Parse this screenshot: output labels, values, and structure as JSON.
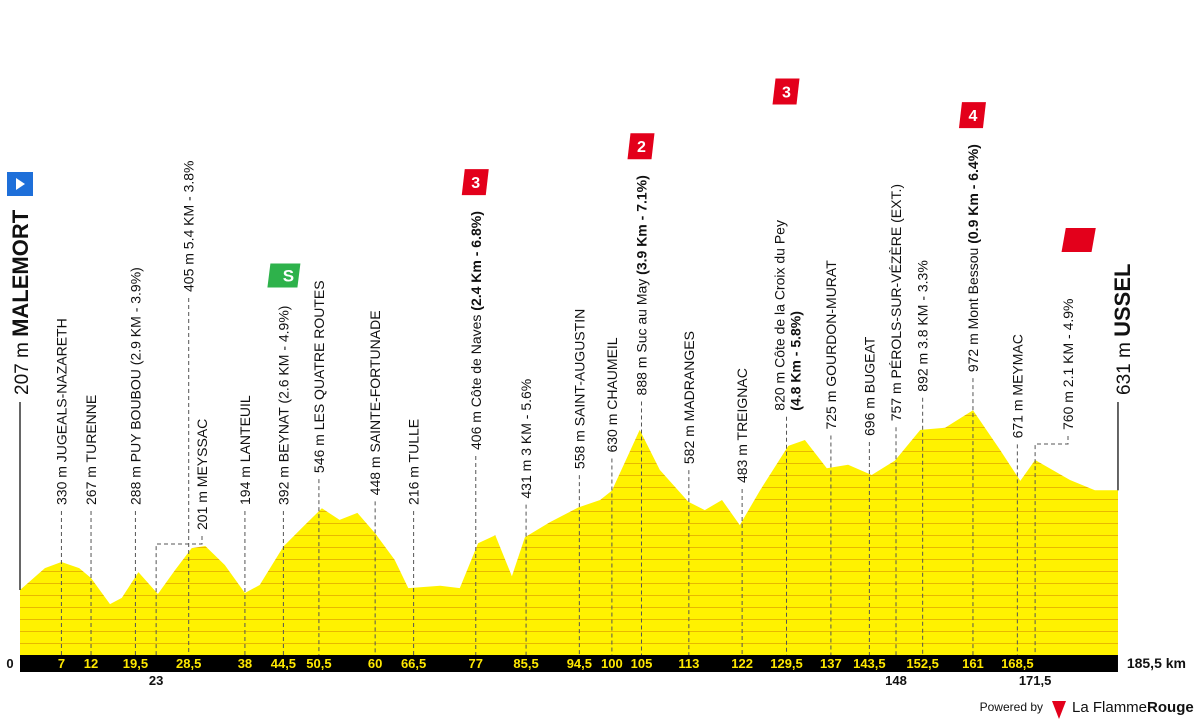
{
  "chart_data": {
    "type": "area",
    "color": "#fff200",
    "x": [
      0,
      4.2,
      7,
      10,
      12,
      15.2,
      17.2,
      20,
      23.3,
      26.2,
      29,
      31.3,
      34.6,
      38,
      40.5,
      44.5,
      48.1,
      51,
      54,
      57,
      60,
      63.3,
      65.6,
      66.5,
      71,
      74.3,
      77.4,
      80.3,
      83.1,
      85.3,
      89.5,
      94.3,
      98,
      100,
      104.7,
      108.1,
      112.9,
      115.7,
      118.6,
      121.6,
      125,
      129.8,
      132.6,
      136.3,
      139.9,
      143.9,
      147.8,
      152.1,
      156.3,
      161,
      165.6,
      169,
      171.5,
      177.4,
      181.6,
      185.5
    ],
    "values": [
      207,
      300,
      326,
      300,
      258,
      147,
      173,
      283,
      190,
      292,
      385,
      394,
      313,
      194,
      228,
      392,
      483,
      555,
      505,
      535,
      448,
      335,
      215,
      216,
      225,
      215,
      406,
      440,
      265,
      431,
      495,
      558,
      590,
      630,
      888,
      718,
      582,
      547,
      590,
      483,
      630,
      820,
      845,
      725,
      740,
      696,
      757,
      888,
      897,
      972,
      802,
      671,
      760,
      675,
      631,
      631
    ],
    "start": {
      "elevation": "207 m",
      "name": "MALEMORT",
      "km": 0
    },
    "finish": {
      "elevation": "631 m",
      "name": "USSEL",
      "km": {
        "value": 185.5,
        "label": "185,5 km"
      }
    },
    "waypoints": [
      {
        "text": "330 m JUGEALS-NAZARETH",
        "km": 7
      },
      {
        "text": "267 m TURENNE",
        "km": 12
      },
      {
        "text": "288 m PUY BOUBOU (2.9 KM - 3.9%)",
        "km": {
          "value": 19.5,
          "label": "19,5"
        }
      },
      {
        "text": "201 m MEYSSAC",
        "km": 23
      },
      {
        "text": "405 m 5.4 KM - 3.8%",
        "km": {
          "value": 28.5,
          "label": "28,5"
        }
      },
      {
        "text": "194 m LANTEUIL",
        "km": 38
      },
      {
        "text": "392 m BEYNAT (2.6 KM - 4.9%)",
        "km": {
          "value": 44.5,
          "label": "44,5"
        },
        "sprint": "S"
      },
      {
        "text": "546 m LES QUATRE ROUTES",
        "km": {
          "value": 50.5,
          "label": "50,5"
        }
      },
      {
        "text": "448 m SAINTE-FORTUNADE",
        "km": 60
      },
      {
        "text": "216 m TULLE",
        "km": {
          "value": 66.5,
          "label": "66,5"
        }
      },
      {
        "text": "406 m Côte de Naves",
        "detail": "(2.4 Km - 6.8%)",
        "km": 77,
        "category": 3
      },
      {
        "text": "431 m 3 KM - 5.6%",
        "km": {
          "value": 85.5,
          "label": "85,5"
        }
      },
      {
        "text": "558 m SAINT-AUGUSTIN",
        "km": {
          "value": 94.5,
          "label": "94,5"
        }
      },
      {
        "text": "630 m CHAUMEIL",
        "km": 100
      },
      {
        "text": "888 m Suc au May",
        "detail": "(3.9 Km - 7.1%)",
        "km": 105,
        "category": 2
      },
      {
        "text": "582 m MADRANGES",
        "km": 113
      },
      {
        "text": "483 m TREIGNAC",
        "km": 122
      },
      {
        "text": "820 m Côte de la Croix du Pey",
        "detail": "(4.8 Km - 5.8%)",
        "km": {
          "value": 129.5,
          "label": "129,5"
        },
        "category": 3
      },
      {
        "text": "725 m GOURDON-MURAT",
        "km": 137
      },
      {
        "text": "696 m BUGEAT",
        "km": {
          "value": 143.5,
          "label": "143,5"
        }
      },
      {
        "text": "757 m PÉROLS-SUR-VÉZÈRE (EXT.)",
        "km": 148
      },
      {
        "text": "892 m 3.8 KM - 3.3%",
        "km": {
          "value": 152.5,
          "label": "152,5"
        }
      },
      {
        "text": "972 m Mont Bessou",
        "detail": "(0.9 Km - 6.4%)",
        "km": 161,
        "category": 4
      },
      {
        "text": "671 m MEYMAC",
        "km": {
          "value": 168.5,
          "label": "168,5"
        }
      },
      {
        "text": "760 m 2.1 KM - 4.9%",
        "km": {
          "value": 171.5,
          "label": "171,5"
        }
      }
    ],
    "footer": {
      "powered": "Powered by",
      "brand": "La Flamme",
      "brand_bold": "Rouge"
    }
  }
}
